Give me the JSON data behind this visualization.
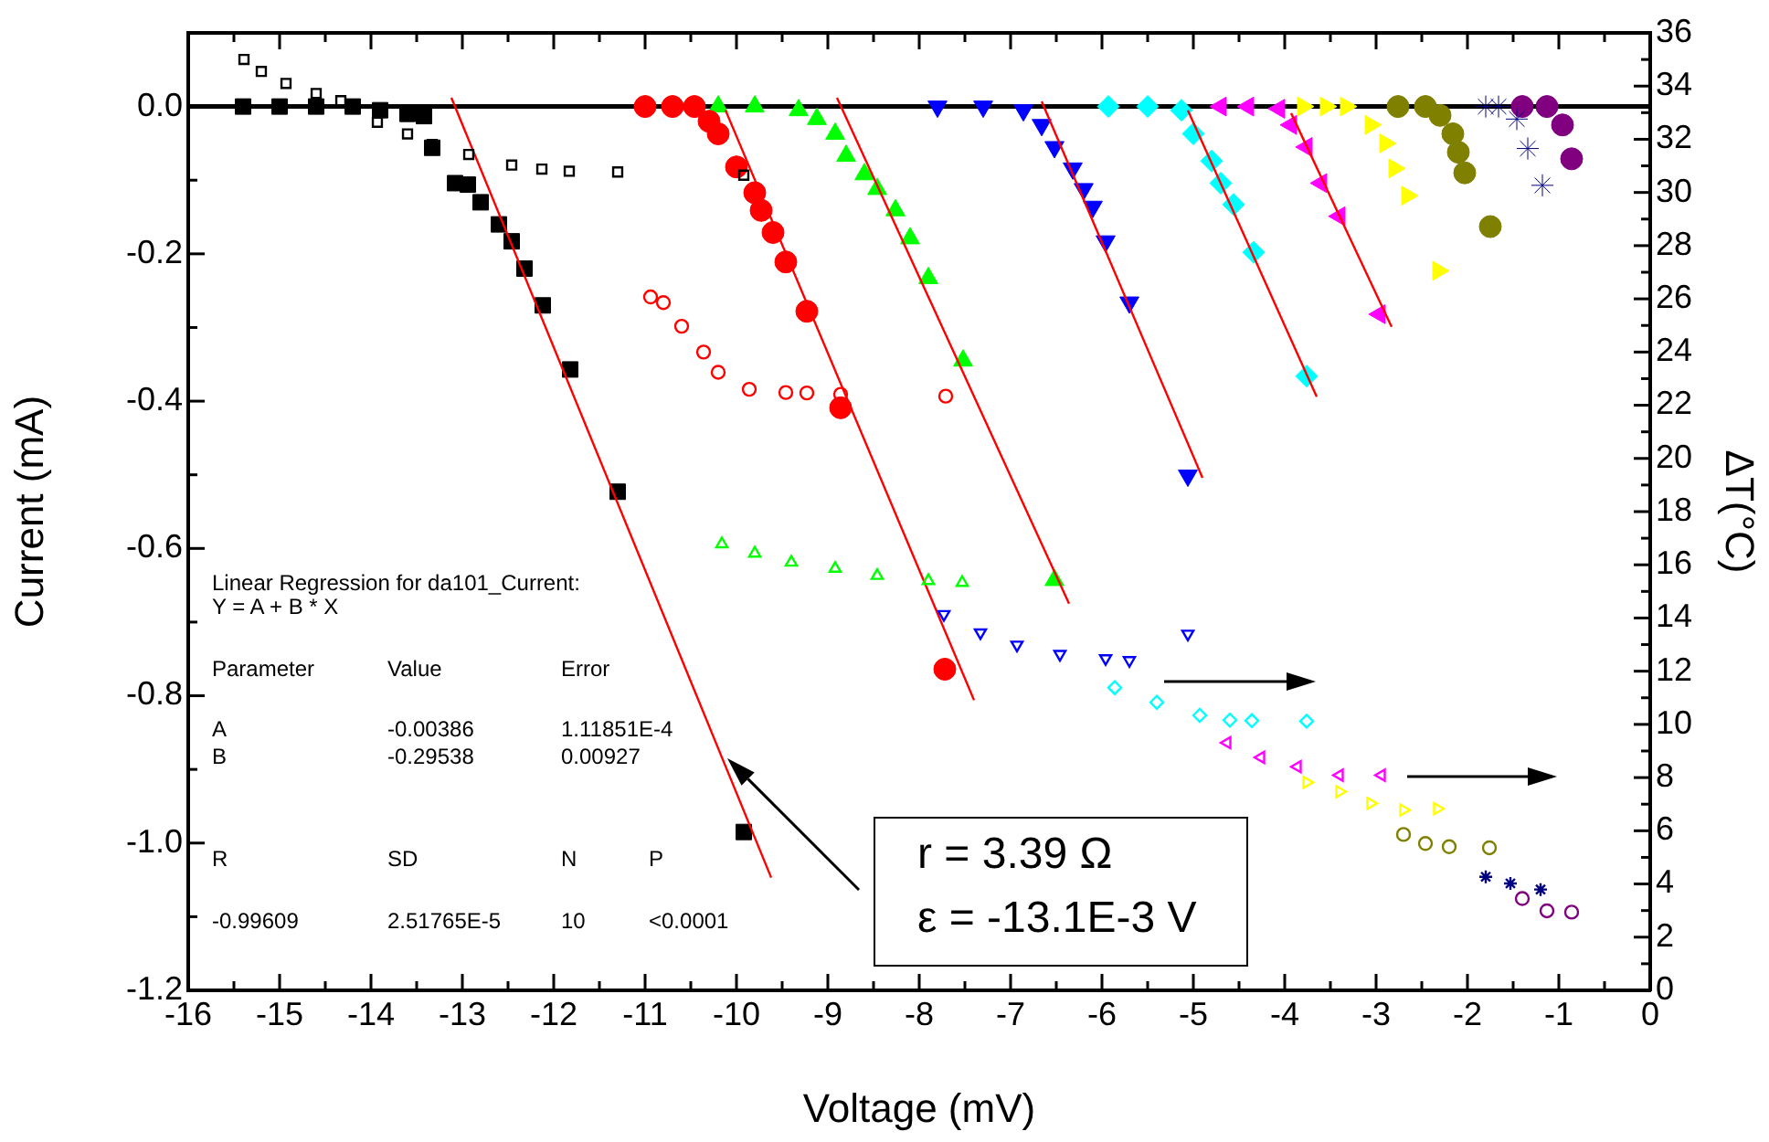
{
  "chart_data": {
    "type": "scatter",
    "xlabel": "Voltage (mV)",
    "ylabel": "Current (mA)",
    "y2label": "ΔT(°C)",
    "xlim": [
      -16,
      0
    ],
    "ylim": [
      -1.2,
      0.1
    ],
    "y2lim": [
      0,
      36
    ],
    "xticks": [
      -16,
      {
        "value": -15.5,
        "label": null
      },
      -15,
      {
        "value": -14.5,
        "label": null
      },
      -14,
      {
        "value": -13.5,
        "label": null
      },
      -13,
      {
        "value": -12.5,
        "label": null
      },
      -12,
      {
        "value": -11.5,
        "label": null
      },
      -11,
      {
        "value": -10.5,
        "label": null
      },
      -10,
      {
        "value": -9.5,
        "label": null
      },
      -9,
      {
        "value": -8.5,
        "label": null
      },
      -8,
      {
        "value": -7.5,
        "label": null
      },
      -7,
      {
        "value": -6.5,
        "label": null
      },
      -6,
      {
        "value": -5.5,
        "label": null
      },
      -5,
      {
        "value": -4.5,
        "label": null
      },
      -4,
      {
        "value": -3.5,
        "label": null
      },
      -3,
      {
        "value": -2.5,
        "label": null
      },
      -2,
      {
        "value": -1.5,
        "label": null
      },
      -1,
      {
        "value": -0.5,
        "label": null
      },
      0
    ],
    "yticks": [
      -1.2,
      {
        "value": -1.1,
        "label": null
      },
      {
        "value": -1,
        "label": "-1.0"
      },
      {
        "value": -0.9,
        "label": null
      },
      -0.8,
      {
        "value": -0.7,
        "label": null
      },
      -0.6,
      {
        "value": -0.5,
        "label": null
      },
      -0.4,
      {
        "value": -0.3,
        "label": null
      },
      -0.2,
      {
        "value": -0.1,
        "label": null
      },
      {
        "value": 0,
        "label": "0.0"
      }
    ],
    "y2ticks": [
      0,
      {
        "value": 1,
        "label": null
      },
      2,
      {
        "value": 3,
        "label": null
      },
      4,
      {
        "value": 5,
        "label": null
      },
      6,
      {
        "value": 7,
        "label": null
      },
      8,
      {
        "value": 9,
        "label": null
      },
      10,
      {
        "value": 11,
        "label": null
      },
      12,
      {
        "value": 13,
        "label": null
      },
      14,
      {
        "value": 15,
        "label": null
      },
      16,
      {
        "value": 17,
        "label": null
      },
      18,
      {
        "value": 19,
        "label": null
      },
      20,
      {
        "value": 21,
        "label": null
      },
      22,
      {
        "value": 23,
        "label": null
      },
      24,
      {
        "value": 25,
        "label": null
      },
      26,
      {
        "value": 27,
        "label": null
      },
      28,
      {
        "value": 29,
        "label": null
      },
      30,
      {
        "value": 31,
        "label": null
      },
      32,
      {
        "value": 33,
        "label": null
      },
      34,
      {
        "value": 35,
        "label": null
      },
      36
    ],
    "grid": false,
    "legend": false,
    "ref_lines": [
      {
        "axis": "y",
        "value": 0,
        "color": "#000000"
      }
    ],
    "series": [
      {
        "type": "scatter",
        "marker": "square",
        "color": "#000000",
        "x": [
          -15.4,
          -15.0,
          -14.6,
          -14.2,
          -13.9,
          -13.6,
          -13.42,
          -13.33,
          -13.08,
          -12.94,
          -12.8,
          -12.6,
          -12.46,
          -12.32,
          -12.12,
          -11.82,
          -11.3,
          -9.92
        ],
        "values": [
          0,
          0,
          0,
          0,
          -0.005,
          -0.01,
          -0.013,
          -0.056,
          -0.104,
          -0.106,
          -0.13,
          -0.16,
          -0.183,
          -0.22,
          -0.27,
          -0.357,
          -0.523,
          -0.985
        ]
      },
      {
        "type": "scatter",
        "marker": "circle",
        "color": "#ff0000",
        "x": [
          -11.0,
          -10.7,
          -10.46,
          -10.3,
          -10.2,
          -10.0,
          -9.8,
          -9.73,
          -9.6,
          -9.46,
          -9.23,
          -8.86,
          -7.72
        ],
        "values": [
          0,
          0,
          0,
          -0.02,
          -0.037,
          -0.082,
          -0.117,
          -0.141,
          -0.171,
          -0.211,
          -0.278,
          -0.409,
          -0.764
        ]
      },
      {
        "type": "scatter",
        "marker": "triangle",
        "color": "#00ff00",
        "x": [
          -10.2,
          -9.8,
          -9.32,
          -9.12,
          -8.92,
          -8.8,
          -8.6,
          -8.46,
          -8.26,
          -8.1,
          -7.9,
          -7.52,
          -6.52
        ],
        "values": [
          0,
          0,
          -0.005,
          -0.017,
          -0.037,
          -0.067,
          -0.092,
          -0.112,
          -0.141,
          -0.179,
          -0.233,
          -0.345,
          -0.643
        ]
      },
      {
        "type": "scatter",
        "marker": "triangle-down",
        "color": "#0000ff",
        "x": [
          -7.8,
          -7.3,
          -6.86,
          -6.66,
          -6.52,
          -6.32,
          -6.2,
          -6.1,
          -5.96,
          -5.7,
          -5.06
        ],
        "values": [
          0,
          0,
          -0.005,
          -0.025,
          -0.055,
          -0.084,
          -0.112,
          -0.136,
          -0.183,
          -0.266,
          -0.501
        ]
      },
      {
        "type": "scatter",
        "marker": "diamond",
        "color": "#00ffff",
        "x": [
          -5.93,
          -5.5,
          -5.13,
          -5.0,
          -4.8,
          -4.7,
          -4.56,
          -4.34,
          -3.76
        ],
        "values": [
          0,
          0,
          -0.005,
          -0.037,
          -0.074,
          -0.104,
          -0.133,
          -0.198,
          -0.366
        ]
      },
      {
        "type": "scatter",
        "marker": "triangle-left",
        "color": "#ff00ff",
        "x": [
          -4.7,
          -4.4,
          -4.06,
          -3.93,
          -3.76,
          -3.6,
          -3.4,
          -2.96
        ],
        "values": [
          0,
          0,
          -0.003,
          -0.025,
          -0.055,
          -0.104,
          -0.149,
          -0.282
        ]
      },
      {
        "type": "scatter",
        "marker": "triangle-right",
        "color": "#ffff00",
        "x": [
          -3.8,
          -3.55,
          -3.33,
          -3.06,
          -2.9,
          -2.8,
          -2.66,
          -2.32
        ],
        "values": [
          0,
          0,
          0,
          -0.025,
          -0.05,
          -0.084,
          -0.121,
          -0.223
        ]
      },
      {
        "type": "scatter",
        "marker": "circle",
        "color": "#808000",
        "x": [
          -2.76,
          -2.46,
          -2.3,
          -2.16,
          -2.1,
          -2.03,
          -1.75
        ],
        "values": [
          0,
          0,
          -0.012,
          -0.037,
          -0.062,
          -0.09,
          -0.163
        ]
      },
      {
        "type": "scatter",
        "marker": "cross",
        "color": "#000080",
        "x": [
          -1.8,
          -1.66,
          -1.46,
          -1.34,
          -1.18
        ],
        "values": [
          0,
          0,
          -0.017,
          -0.057,
          -0.107
        ]
      },
      {
        "type": "scatter",
        "marker": "circle",
        "color": "#800080",
        "x": [
          -1.4,
          -1.13,
          -0.96,
          -0.86
        ],
        "values": [
          0,
          0,
          -0.025,
          -0.071
        ]
      },
      {
        "type": "scatter",
        "axis": "y2",
        "marker": "square",
        "color": "#000000",
        "x": [
          -15.39,
          -15.2,
          -14.93,
          -14.6,
          -14.33,
          -13.93,
          -13.6,
          -13.33,
          -12.93,
          -12.46,
          -12.13,
          -11.83,
          -11.3,
          -9.92
        ],
        "values": [
          35.0,
          34.55,
          34.1,
          33.72,
          33.45,
          32.64,
          32.2,
          31.8,
          31.43,
          31.03,
          30.88,
          30.8,
          30.77,
          30.65
        ]
      },
      {
        "type": "scatter",
        "axis": "y2",
        "marker": "circle",
        "color": "#ff0000",
        "x": [
          -10.94,
          -10.8,
          -10.6,
          -10.36,
          -10.2,
          -9.86,
          -9.46,
          -9.23,
          -8.86,
          -7.71
        ],
        "values": [
          26.07,
          25.86,
          24.97,
          24.0,
          23.24,
          22.6,
          22.48,
          22.46,
          22.41,
          22.34
        ]
      },
      {
        "type": "scatter",
        "axis": "y2",
        "marker": "triangle",
        "color": "#00ff00",
        "x": [
          -10.16,
          -9.8,
          -9.4,
          -8.92,
          -8.46,
          -7.9,
          -7.53
        ],
        "values": [
          16.78,
          16.43,
          16.09,
          15.86,
          15.59,
          15.4,
          15.33
        ]
      },
      {
        "type": "scatter",
        "axis": "y2",
        "marker": "triangle-down",
        "color": "#0000ff",
        "x": [
          -7.73,
          -7.33,
          -6.93,
          -6.46,
          -5.96,
          -5.7,
          -5.06
        ],
        "values": [
          14.14,
          13.45,
          12.99,
          12.64,
          12.48,
          12.41,
          13.4
        ]
      },
      {
        "type": "scatter",
        "axis": "y2",
        "marker": "diamond",
        "color": "#00ffff",
        "x": [
          -5.86,
          -5.4,
          -4.93,
          -4.6,
          -4.36,
          -3.76
        ],
        "values": [
          11.38,
          10.83,
          10.34,
          10.16,
          10.14,
          10.12
        ]
      },
      {
        "type": "scatter",
        "axis": "y2",
        "marker": "triangle-left",
        "color": "#ff00ff",
        "x": [
          -4.63,
          -4.26,
          -3.86,
          -3.4,
          -2.94
        ],
        "values": [
          9.31,
          8.76,
          8.41,
          8.09,
          8.09
        ]
      },
      {
        "type": "scatter",
        "axis": "y2",
        "marker": "triangle-right",
        "color": "#ffff00",
        "x": [
          -3.76,
          -3.4,
          -3.06,
          -2.7,
          -2.33
        ],
        "values": [
          7.82,
          7.47,
          7.03,
          6.78,
          6.83
        ]
      },
      {
        "type": "scatter",
        "axis": "y2",
        "marker": "circle",
        "color": "#808000",
        "x": [
          -2.7,
          -2.46,
          -2.2,
          -1.76
        ],
        "values": [
          5.86,
          5.52,
          5.4,
          5.36
        ]
      },
      {
        "type": "scatter",
        "axis": "y2",
        "marker": "cross",
        "color": "#000080",
        "x": [
          -1.8,
          -1.53,
          -1.2
        ],
        "values": [
          4.27,
          4.02,
          3.79
        ]
      },
      {
        "type": "scatter",
        "axis": "y2",
        "marker": "circle",
        "color": "#800080",
        "x": [
          -1.4,
          -1.13,
          -0.86
        ],
        "values": [
          3.45,
          2.99,
          2.94
        ]
      },
      {
        "type": "line",
        "marker": "none",
        "color": "#ff0000",
        "x": [
          -13.12,
          -9.62
        ],
        "values": [
          0.012,
          -1.047
        ]
      },
      {
        "type": "line",
        "marker": "none",
        "color": "#ff0000",
        "x": [
          -10.12,
          -7.4
        ],
        "values": [
          -0.005,
          -0.806
        ]
      },
      {
        "type": "line",
        "marker": "none",
        "color": "#ff0000",
        "x": [
          -8.9,
          -6.36
        ],
        "values": [
          0.012,
          -0.675
        ]
      },
      {
        "type": "line",
        "marker": "none",
        "color": "#ff0000",
        "x": [
          -6.66,
          -4.9
        ],
        "values": [
          0.007,
          -0.504
        ]
      },
      {
        "type": "line",
        "marker": "none",
        "color": "#ff0000",
        "x": [
          -5.06,
          -3.65
        ],
        "values": [
          -0.005,
          -0.394
        ]
      },
      {
        "type": "line",
        "marker": "none",
        "color": "#ff0000",
        "x": [
          -3.93,
          -2.83
        ],
        "values": [
          -0.009,
          -0.299
        ]
      }
    ],
    "annotations": [
      "Linear Regression for da101_Current:",
      "Y = A + B * X",
      "Parameter",
      "Value",
      "Error",
      "A",
      "-0.00386",
      "1.11851E-4",
      "B",
      "-0.29538",
      "0.00927",
      "R",
      "SD",
      "N",
      "P",
      "-0.99609",
      "2.51765E-5",
      "10",
      "<0.0001",
      "r = 3.39 Ω",
      "ε = -13.1E-3 V"
    ]
  }
}
